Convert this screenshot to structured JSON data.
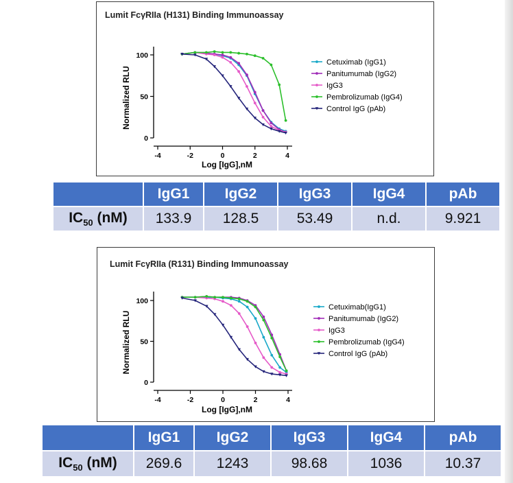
{
  "panels": [
    {
      "title": "Lumit FcγRIIa (H131) Binding Immunoassay",
      "table": {
        "headers": [
          "",
          "IgG1",
          "IgG2",
          "IgG3",
          "IgG4",
          "pAb"
        ],
        "row_label_main": "IC",
        "row_label_sub": "50",
        "row_label_unit": " (nM)",
        "values": [
          "133.9",
          "128.5",
          "53.49",
          "n.d.",
          "9.921"
        ]
      }
    },
    {
      "title": "Lumit FcγRIIa (R131) Binding Immunoassay",
      "table": {
        "headers": [
          "",
          "IgG1",
          "IgG2",
          "IgG3",
          "IgG4",
          "pAb"
        ],
        "row_label_main": "IC",
        "row_label_sub": "50",
        "row_label_unit": " (nM)",
        "values": [
          "269.6",
          "1243",
          "98.68",
          "1036",
          "10.37"
        ]
      }
    }
  ],
  "chart_data": [
    {
      "type": "line",
      "title": "Lumit FcγRIIa (H131) Binding Immunoassay",
      "xlabel": "Log [IgG],nM",
      "ylabel": "Normalized RLU",
      "xlim": [
        -4,
        4.8
      ],
      "ylim": [
        0,
        110
      ],
      "x_ticks": [
        -4,
        -2,
        0,
        2,
        4
      ],
      "y_ticks": [
        0,
        50,
        100
      ],
      "legend_position": "right",
      "series": [
        {
          "name": "Cetuximab (IgG1)",
          "color": "#18a8c8",
          "marker": "circle",
          "x": [
            -2.5,
            -1.7,
            -1.0,
            -0.5,
            0.0,
            0.5,
            1.0,
            1.5,
            2.0,
            2.5,
            3.0,
            3.5,
            3.9
          ],
          "y": [
            101,
            103,
            102,
            101,
            99,
            96,
            88,
            75,
            53,
            33,
            19,
            11,
            8
          ]
        },
        {
          "name": "Panitumumab (IgG2)",
          "color": "#a02cb8",
          "marker": "circle",
          "x": [
            -2.5,
            -1.7,
            -1.0,
            -0.5,
            0.0,
            0.5,
            1.0,
            1.5,
            2.0,
            2.5,
            3.0,
            3.5,
            3.9
          ],
          "y": [
            101,
            103,
            102,
            101,
            100,
            97,
            90,
            76,
            55,
            33,
            18,
            10,
            7
          ]
        },
        {
          "name": "IgG3",
          "color": "#e55ac8",
          "marker": "circle",
          "x": [
            -2.5,
            -1.7,
            -1.0,
            -0.5,
            0.0,
            0.5,
            1.0,
            1.5,
            2.0,
            2.5,
            3.0,
            3.5,
            3.9
          ],
          "y": [
            101,
            103,
            101,
            100,
            97,
            91,
            80,
            62,
            42,
            25,
            14,
            9,
            7
          ]
        },
        {
          "name": "Pembrolizumab (IgG4)",
          "color": "#2bbf2b",
          "marker": "circle",
          "x": [
            -2.5,
            -1.7,
            -1.0,
            -0.5,
            0.0,
            0.5,
            1.0,
            1.5,
            2.0,
            2.5,
            3.0,
            3.5,
            3.9
          ],
          "y": [
            101,
            103,
            103,
            104,
            103,
            103,
            102,
            101,
            99,
            96,
            88,
            64,
            21
          ]
        },
        {
          "name": "Control IgG (pAb)",
          "color": "#24247a",
          "marker": "triangle",
          "x": [
            -2.5,
            -1.7,
            -1.0,
            -0.5,
            0.0,
            0.5,
            1.0,
            1.5,
            2.0,
            2.5,
            3.0,
            3.5,
            3.9
          ],
          "y": [
            101,
            100,
            95,
            86,
            75,
            62,
            48,
            35,
            24,
            16,
            11,
            8,
            6
          ]
        }
      ]
    },
    {
      "type": "line",
      "title": "Lumit FcγRIIa (R131) Binding Immunoassay",
      "xlabel": "Log [IgG],nM",
      "ylabel": "Normalized RLU",
      "xlim": [
        -4,
        4.8
      ],
      "ylim": [
        0,
        110
      ],
      "x_ticks": [
        -4,
        -2,
        0,
        2,
        4
      ],
      "y_ticks": [
        0,
        50,
        100
      ],
      "legend_position": "right",
      "series": [
        {
          "name": "Cetuximab(IgG1)",
          "color": "#18a8c8",
          "marker": "circle",
          "x": [
            -2.5,
            -1.7,
            -1.0,
            -0.5,
            0.0,
            0.5,
            1.0,
            1.5,
            2.0,
            2.5,
            3.0,
            3.5,
            3.9
          ],
          "y": [
            104,
            104,
            104,
            104,
            103,
            102,
            99,
            92,
            78,
            55,
            33,
            18,
            12
          ]
        },
        {
          "name": "Panitumumab (IgG2)",
          "color": "#a02cb8",
          "marker": "circle",
          "x": [
            -2.5,
            -1.7,
            -1.0,
            -0.5,
            0.0,
            0.5,
            1.0,
            1.5,
            2.0,
            2.5,
            3.0,
            3.5,
            3.9
          ],
          "y": [
            104,
            104,
            105,
            104,
            104,
            104,
            103,
            100,
            94,
            80,
            58,
            34,
            14
          ]
        },
        {
          "name": "IgG3",
          "color": "#e55ac8",
          "marker": "circle",
          "x": [
            -2.5,
            -1.7,
            -1.0,
            -0.5,
            0.0,
            0.5,
            1.0,
            1.5,
            2.0,
            2.5,
            3.0,
            3.5,
            3.9
          ],
          "y": [
            104,
            104,
            103,
            102,
            99,
            94,
            84,
            68,
            48,
            30,
            18,
            12,
            10
          ]
        },
        {
          "name": "Pembrolizumab (IgG4)",
          "color": "#2bbf2b",
          "marker": "circle",
          "x": [
            -2.5,
            -1.7,
            -1.0,
            -0.5,
            0.0,
            0.5,
            1.0,
            1.5,
            2.0,
            2.5,
            3.0,
            3.5,
            3.9
          ],
          "y": [
            104,
            104,
            105,
            104,
            104,
            103,
            102,
            99,
            92,
            76,
            54,
            31,
            14
          ]
        },
        {
          "name": "Control IgG (pAb)",
          "color": "#24247a",
          "marker": "triangle",
          "x": [
            -2.5,
            -1.7,
            -1.0,
            -0.5,
            0.0,
            0.5,
            1.0,
            1.5,
            2.0,
            2.5,
            3.0,
            3.5,
            3.9
          ],
          "y": [
            103,
            100,
            93,
            83,
            70,
            55,
            40,
            28,
            19,
            13,
            10,
            9,
            8
          ]
        }
      ]
    }
  ]
}
